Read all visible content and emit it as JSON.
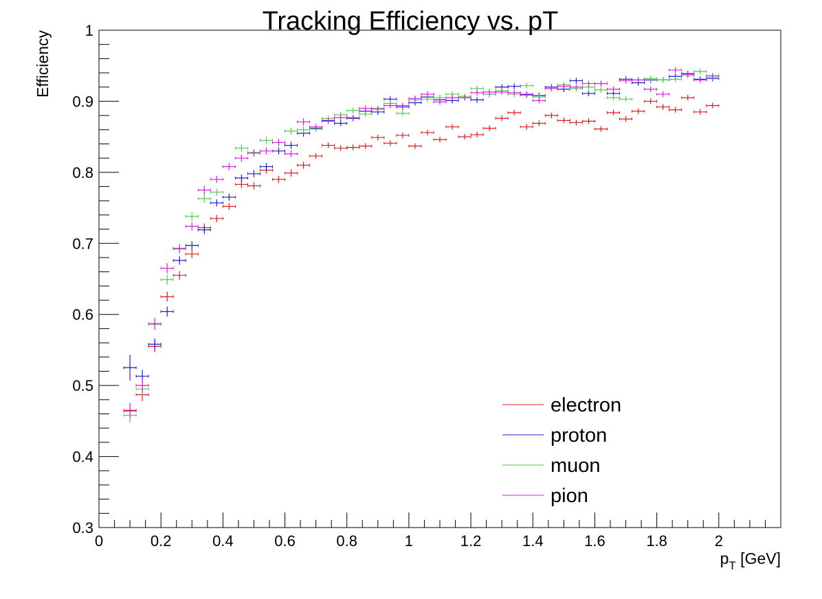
{
  "chart_data": {
    "type": "scatter",
    "title": "Tracking Efficiency vs. pT",
    "xlabel": "p_T [GeV]",
    "xlabel_main": "p",
    "xlabel_sub": "T",
    "xlabel_rest": " [GeV]",
    "ylabel": "Efficiency",
    "xlim": [
      0,
      2.2
    ],
    "ylim": [
      0.3,
      1.0
    ],
    "x_ticks": [
      "0",
      "0.2",
      "0.4",
      "0.6",
      "0.8",
      "1",
      "1.2",
      "1.4",
      "1.6",
      "1.8",
      "2"
    ],
    "y_ticks": [
      "0.3",
      "0.4",
      "0.5",
      "0.6",
      "0.7",
      "0.8",
      "0.9",
      "1"
    ],
    "x_half_width": 0.02,
    "grid": false,
    "legend_position": "bottom-right",
    "x": [
      0.1,
      0.14,
      0.18,
      0.22,
      0.26,
      0.3,
      0.34,
      0.38,
      0.42,
      0.46,
      0.5,
      0.54,
      0.58,
      0.62,
      0.66,
      0.7,
      0.74,
      0.78,
      0.82,
      0.86,
      0.9,
      0.94,
      0.98,
      1.02,
      1.06,
      1.1,
      1.14,
      1.18,
      1.22,
      1.26,
      1.3,
      1.34,
      1.38,
      1.42,
      1.46,
      1.5,
      1.54,
      1.58,
      1.62,
      1.66,
      1.7,
      1.74,
      1.78,
      1.82,
      1.86,
      1.9,
      1.94,
      1.98
    ],
    "series": [
      {
        "name": "electron",
        "color": "#e01818",
        "values": [
          0.465,
          0.487,
          0.555,
          0.625,
          0.655,
          0.685,
          0.722,
          0.735,
          0.752,
          0.783,
          0.781,
          0.803,
          0.79,
          0.799,
          0.81,
          0.823,
          0.838,
          0.834,
          0.835,
          0.837,
          0.849,
          0.841,
          0.852,
          0.837,
          0.856,
          0.846,
          0.864,
          0.85,
          0.853,
          0.862,
          0.876,
          0.884,
          0.864,
          0.869,
          0.88,
          0.873,
          0.87,
          0.872,
          0.861,
          0.884,
          0.875,
          0.886,
          0.9,
          0.892,
          0.888,
          0.905,
          0.885,
          0.894
        ],
        "errors": [
          0.01,
          0.009,
          0.008,
          0.007,
          0.006,
          0.006,
          0.006,
          0.005,
          0.005,
          0.005,
          0.005,
          0.005,
          0.005,
          0.005,
          0.005,
          0.004,
          0.004,
          0.004,
          0.004,
          0.004,
          0.004,
          0.004,
          0.004,
          0.004,
          0.004,
          0.004,
          0.004,
          0.004,
          0.004,
          0.004,
          0.004,
          0.004,
          0.004,
          0.004,
          0.004,
          0.004,
          0.004,
          0.004,
          0.004,
          0.004,
          0.004,
          0.004,
          0.004,
          0.004,
          0.004,
          0.004,
          0.004,
          0.004
        ]
      },
      {
        "name": "proton",
        "color": "#1818e0",
        "values": [
          0.525,
          0.513,
          0.558,
          0.604,
          0.676,
          0.697,
          0.719,
          0.757,
          0.765,
          0.792,
          0.798,
          0.808,
          0.83,
          0.838,
          0.855,
          0.862,
          0.873,
          0.869,
          0.876,
          0.886,
          0.885,
          0.903,
          0.892,
          0.898,
          0.906,
          0.902,
          0.901,
          0.905,
          0.902,
          0.91,
          0.92,
          0.921,
          0.909,
          0.908,
          0.92,
          0.917,
          0.929,
          0.911,
          0.925,
          0.911,
          0.931,
          0.926,
          0.93,
          0.93,
          0.935,
          0.939,
          0.931,
          0.932
        ],
        "errors": [
          0.018,
          0.009,
          0.008,
          0.007,
          0.006,
          0.006,
          0.006,
          0.005,
          0.005,
          0.005,
          0.005,
          0.005,
          0.005,
          0.005,
          0.005,
          0.004,
          0.004,
          0.004,
          0.004,
          0.004,
          0.004,
          0.004,
          0.004,
          0.004,
          0.004,
          0.004,
          0.004,
          0.004,
          0.004,
          0.004,
          0.004,
          0.004,
          0.004,
          0.004,
          0.004,
          0.004,
          0.004,
          0.004,
          0.004,
          0.004,
          0.004,
          0.004,
          0.004,
          0.004,
          0.004,
          0.004,
          0.004,
          0.004
        ]
      },
      {
        "name": "muon",
        "color": "#50c850",
        "values": [
          0.458,
          0.495,
          0.586,
          0.649,
          0.692,
          0.738,
          0.763,
          0.772,
          0.808,
          0.834,
          0.828,
          0.845,
          0.842,
          0.858,
          0.86,
          0.861,
          0.876,
          0.881,
          0.887,
          0.882,
          0.89,
          0.897,
          0.883,
          0.902,
          0.903,
          0.905,
          0.91,
          0.907,
          0.918,
          0.91,
          0.915,
          0.91,
          0.922,
          0.906,
          0.918,
          0.923,
          0.918,
          0.92,
          0.916,
          0.905,
          0.903,
          0.93,
          0.932,
          0.93,
          0.931,
          0.936,
          0.942,
          0.934
        ],
        "errors": [
          0.01,
          0.009,
          0.008,
          0.007,
          0.006,
          0.006,
          0.006,
          0.005,
          0.005,
          0.005,
          0.005,
          0.005,
          0.005,
          0.005,
          0.005,
          0.004,
          0.004,
          0.004,
          0.004,
          0.004,
          0.004,
          0.004,
          0.004,
          0.004,
          0.004,
          0.004,
          0.004,
          0.004,
          0.004,
          0.004,
          0.004,
          0.004,
          0.004,
          0.004,
          0.004,
          0.004,
          0.004,
          0.004,
          0.004,
          0.004,
          0.004,
          0.004,
          0.004,
          0.004,
          0.004,
          0.004,
          0.004,
          0.004
        ]
      },
      {
        "name": "pion",
        "color": "#e018e0",
        "values": [
          0.464,
          0.5,
          0.587,
          0.665,
          0.693,
          0.724,
          0.775,
          0.79,
          0.808,
          0.82,
          0.827,
          0.83,
          0.842,
          0.826,
          0.871,
          0.864,
          0.872,
          0.877,
          0.877,
          0.89,
          0.889,
          0.894,
          0.894,
          0.904,
          0.91,
          0.899,
          0.905,
          0.905,
          0.912,
          0.913,
          0.913,
          0.912,
          0.91,
          0.901,
          0.918,
          0.921,
          0.92,
          0.925,
          0.925,
          0.917,
          0.929,
          0.93,
          0.917,
          0.91,
          0.944,
          0.938,
          0.93,
          0.936
        ],
        "errors": [
          0.01,
          0.009,
          0.008,
          0.007,
          0.006,
          0.006,
          0.006,
          0.005,
          0.005,
          0.005,
          0.005,
          0.005,
          0.005,
          0.005,
          0.005,
          0.004,
          0.004,
          0.004,
          0.004,
          0.004,
          0.004,
          0.004,
          0.004,
          0.004,
          0.004,
          0.004,
          0.004,
          0.004,
          0.004,
          0.004,
          0.004,
          0.004,
          0.004,
          0.004,
          0.004,
          0.004,
          0.004,
          0.004,
          0.004,
          0.004,
          0.004,
          0.004,
          0.004,
          0.004,
          0.004,
          0.004,
          0.004,
          0.004
        ]
      }
    ]
  }
}
